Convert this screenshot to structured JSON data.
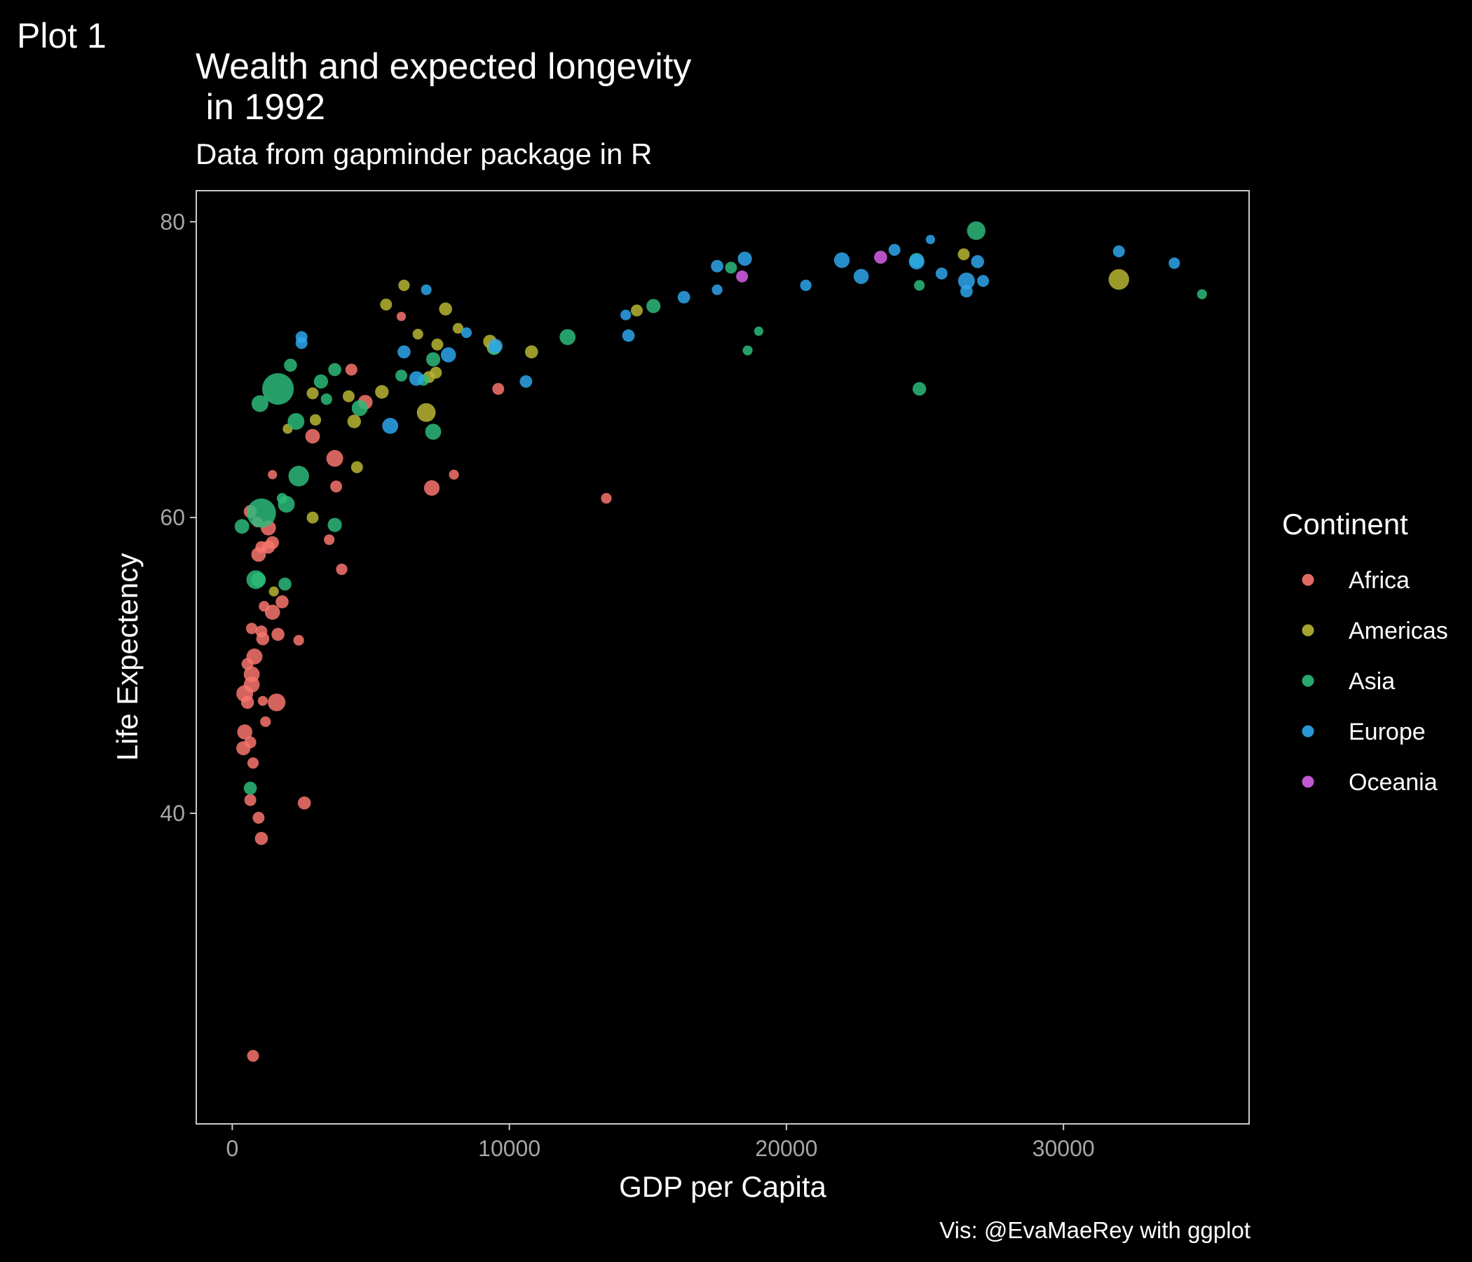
{
  "plot_tag": "Plot 1",
  "colors": {
    "background": "#000000",
    "panel_border": "#c8c8c8",
    "tick_text": "#a6a6a6",
    "Africa": "#F8766D",
    "Americas": "#B7B532",
    "Asia": "#2DBA7A",
    "Europe": "#2EA6EC",
    "Oceania": "#D660E8"
  },
  "chart_data": {
    "type": "scatter",
    "title": "Wealth and expected longevity\n in 1992",
    "subtitle": "Data from gapminder package in R",
    "caption": "Vis: @EvaMaeRey with ggplot",
    "xlabel": "GDP per Capita",
    "ylabel": "Life Expectency",
    "xlim": [
      -1300,
      36700
    ],
    "ylim": [
      19,
      82.1
    ],
    "x_ticks": [
      0,
      10000,
      20000,
      30000
    ],
    "x_tick_labels": [
      "0",
      "10000",
      "20000",
      "30000"
    ],
    "y_ticks": [
      40,
      60,
      80
    ],
    "y_tick_labels": [
      "40",
      "60",
      "80"
    ],
    "grid": false,
    "legend": {
      "title": "Continent",
      "placement": "right",
      "entries": [
        "Africa",
        "Americas",
        "Asia",
        "Europe",
        "Oceania"
      ]
    },
    "series": [
      {
        "name": "Africa",
        "points": [
          [
            4300,
            70
          ],
          [
            3700,
            64
          ],
          [
            3750,
            62.1
          ],
          [
            2900,
            65.5
          ],
          [
            4800,
            67.8
          ],
          [
            1450,
            62.9
          ],
          [
            1450,
            58.3
          ],
          [
            1300,
            58
          ],
          [
            1050,
            58
          ],
          [
            950,
            57.5
          ],
          [
            1300,
            59.3
          ],
          [
            650,
            60.4
          ],
          [
            900,
            59.7
          ],
          [
            3500,
            58.5
          ],
          [
            3950,
            56.5
          ],
          [
            1800,
            54.3
          ],
          [
            1450,
            53.6
          ],
          [
            1150,
            54
          ],
          [
            700,
            52.5
          ],
          [
            1100,
            51.8
          ],
          [
            1050,
            52.3
          ],
          [
            1650,
            52.1
          ],
          [
            2400,
            51.7
          ],
          [
            800,
            50.6
          ],
          [
            550,
            50.1
          ],
          [
            700,
            49.4
          ],
          [
            700,
            48.7
          ],
          [
            450,
            48.1
          ],
          [
            550,
            47.5
          ],
          [
            1100,
            47.6
          ],
          [
            1600,
            47.5
          ],
          [
            450,
            45.5
          ],
          [
            400,
            44.4
          ],
          [
            650,
            44.8
          ],
          [
            1200,
            46.2
          ],
          [
            750,
            43.4
          ],
          [
            650,
            40.9
          ],
          [
            950,
            39.7
          ],
          [
            1050,
            38.3
          ],
          [
            2600,
            40.7
          ],
          [
            750,
            23.6
          ],
          [
            7200,
            62
          ],
          [
            8000,
            62.9
          ],
          [
            9600,
            68.7
          ],
          [
            13500,
            61.3
          ],
          [
            6100,
            73.6
          ]
        ],
        "sizes": [
          1,
          2,
          1,
          1.5,
          1.5,
          0.6,
          1.2,
          1.2,
          1,
          1.5,
          1.6,
          1.2,
          0.8,
          0.8,
          0.9,
          1.2,
          1.6,
          0.8,
          0.9,
          1.2,
          1,
          1.2,
          0.8,
          1.8,
          1,
          1.8,
          1.8,
          2,
          1.2,
          0.7,
          2.2,
          1.6,
          1.4,
          1,
          0.8,
          0.9,
          1,
          1,
          1.2,
          1.2,
          1,
          1.7,
          0.7,
          1,
          0.8,
          0.6
        ]
      },
      {
        "name": "Americas",
        "points": [
          [
            2000,
            66
          ],
          [
            3000,
            66.6
          ],
          [
            2900,
            68.4
          ],
          [
            4200,
            68.2
          ],
          [
            4400,
            66.5
          ],
          [
            4500,
            63.4
          ],
          [
            2900,
            60
          ],
          [
            1500,
            55
          ],
          [
            5400,
            68.5
          ],
          [
            7000,
            67.1
          ],
          [
            7100,
            69.5
          ],
          [
            7350,
            69.8
          ],
          [
            7400,
            71.7
          ],
          [
            6700,
            72.4
          ],
          [
            7700,
            74.1
          ],
          [
            8150,
            72.8
          ],
          [
            9300,
            71.9
          ],
          [
            9450,
            71.5
          ],
          [
            10800,
            71.2
          ],
          [
            5550,
            74.4
          ],
          [
            6200,
            75.7
          ],
          [
            14600,
            74
          ],
          [
            26400,
            77.8
          ],
          [
            32000,
            76.1
          ]
        ],
        "sizes": [
          0.7,
          0.9,
          1,
          1,
          1.3,
          1,
          1,
          0.7,
          1.3,
          2.5,
          1,
          1,
          1,
          0.8,
          1.2,
          0.8,
          1.3,
          1.5,
          1.2,
          1,
          0.9,
          1,
          1,
          3
        ]
      },
      {
        "name": "Asia",
        "points": [
          [
            1650,
            68.7
          ],
          [
            1050,
            60.3
          ],
          [
            1000,
            67.7
          ],
          [
            2100,
            70.3
          ],
          [
            2300,
            66.5
          ],
          [
            2400,
            62.8
          ],
          [
            1950,
            60.9
          ],
          [
            1800,
            61.3
          ],
          [
            350,
            59.4
          ],
          [
            850,
            55.8
          ],
          [
            950,
            55.8
          ],
          [
            1900,
            55.5
          ],
          [
            3200,
            69.2
          ],
          [
            3700,
            70
          ],
          [
            3400,
            68
          ],
          [
            4600,
            67.4
          ],
          [
            3700,
            59.5
          ],
          [
            6100,
            69.6
          ],
          [
            6900,
            69.3
          ],
          [
            7250,
            70.7
          ],
          [
            7250,
            65.8
          ],
          [
            9450,
            71.4
          ],
          [
            12100,
            72.2
          ],
          [
            15200,
            74.3
          ],
          [
            18000,
            76.9
          ],
          [
            19000,
            72.6
          ],
          [
            18600,
            71.3
          ],
          [
            24800,
            75.7
          ],
          [
            24700,
            77.4
          ],
          [
            26850,
            79.4
          ],
          [
            24800,
            68.7
          ],
          [
            35000,
            75.1
          ],
          [
            650,
            41.7
          ]
        ],
        "sizes": [
          7,
          6,
          2,
          1.2,
          2,
          3,
          2,
          0.8,
          1.5,
          2.5,
          1.5,
          1.2,
          1.4,
          1.2,
          0.9,
          1.8,
          1.4,
          1,
          0.9,
          1.4,
          1.8,
          1,
          1.8,
          1.4,
          1,
          0.6,
          0.7,
          0.8,
          1.5,
          2.4,
          1.3,
          0.7,
          1.2
        ]
      },
      {
        "name": "Europe",
        "points": [
          [
            2500,
            71.8
          ],
          [
            2500,
            72.2
          ],
          [
            6200,
            71.2
          ],
          [
            6650,
            69.4
          ],
          [
            5700,
            66.2
          ],
          [
            7000,
            75.4
          ],
          [
            7800,
            71
          ],
          [
            8450,
            72.5
          ],
          [
            9500,
            71.6
          ],
          [
            10600,
            69.2
          ],
          [
            14200,
            73.7
          ],
          [
            14300,
            72.3
          ],
          [
            16300,
            74.9
          ],
          [
            17500,
            75.4
          ],
          [
            17500,
            77
          ],
          [
            18500,
            77.5
          ],
          [
            20700,
            75.7
          ],
          [
            22000,
            77.4
          ],
          [
            22700,
            76.3
          ],
          [
            23900,
            78.1
          ],
          [
            24700,
            77.3
          ],
          [
            25200,
            78.8
          ],
          [
            25600,
            76.5
          ],
          [
            26500,
            76
          ],
          [
            26500,
            75.3
          ],
          [
            26900,
            77.3
          ],
          [
            27100,
            76
          ],
          [
            32000,
            78
          ],
          [
            34000,
            77.2
          ]
        ],
        "sizes": [
          1,
          1,
          1.2,
          1.5,
          1.8,
          0.8,
          1.6,
          0.8,
          1.4,
          1.1,
          0.8,
          1.1,
          1.1,
          0.8,
          1.1,
          1.4,
          0.9,
          1.7,
          1.6,
          1,
          1.7,
          0.6,
          1,
          2,
          1.1,
          1.2,
          1,
          1,
          0.9
        ]
      },
      {
        "name": "Oceania",
        "points": [
          [
            18400,
            76.3
          ],
          [
            23400,
            77.6
          ]
        ],
        "sizes": [
          1,
          1.2
        ]
      }
    ]
  }
}
